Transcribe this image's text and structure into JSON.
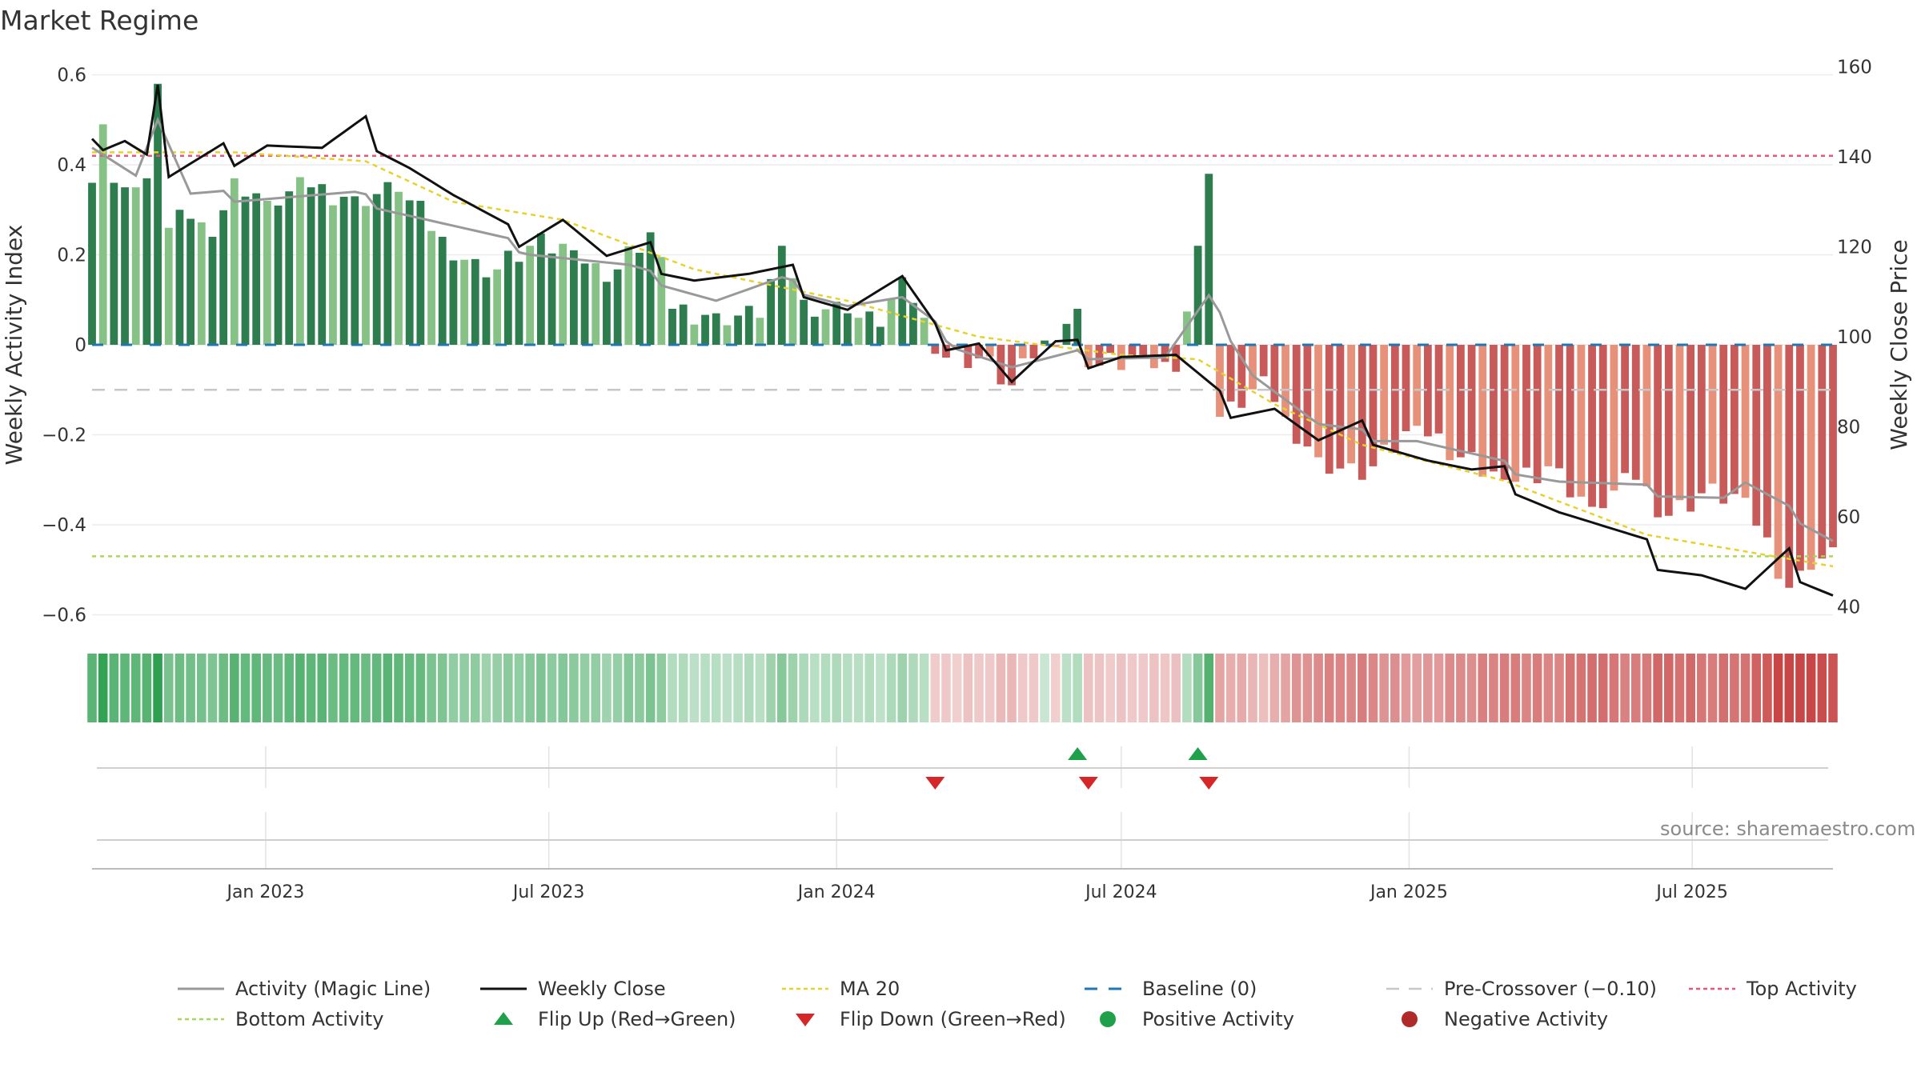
{
  "title": "Market Regime",
  "source": "source: sharemaestro.com",
  "colors": {
    "green_strong": "#2e7d4f",
    "green_light": "#86c286",
    "red_strong": "#c95a5a",
    "red_light": "#e8917a",
    "magic_line": "#999999",
    "close": "#111111",
    "ma20": "#e6d22a",
    "baseline": "#1f77b4",
    "pre_crossover": "#c7c7c7",
    "top_activity": "#e8557a",
    "bottom_activity": "#a9d65a",
    "flip_up": "#1fa04a",
    "flip_down": "#d62728"
  },
  "chart_data": {
    "type": "bar",
    "title": "Market Regime",
    "ylabel_left": "Weekly Activity Index",
    "ylabel_right": "Weekly Close Price",
    "ylim_left": [
      -0.6,
      0.6
    ],
    "ylim_right": [
      40,
      160
    ],
    "yticks_left": [
      "0.6",
      "0.4",
      "0.2",
      "0",
      "−0.2",
      "−0.4",
      "−0.6"
    ],
    "yticks_left_values": [
      0.6,
      0.4,
      0.2,
      0,
      -0.2,
      -0.4,
      -0.6
    ],
    "yticks_right": [
      "160",
      "140",
      "120",
      "100",
      "80",
      "60",
      "40"
    ],
    "yticks_right_values": [
      160,
      140,
      120,
      100,
      80,
      60,
      40
    ],
    "x_start": "2022-09-12",
    "x_end": "2025-09-29",
    "xtick_labels": [
      "Jan 2023",
      "Jul 2023",
      "Jan 2024",
      "Jul 2024",
      "Jan 2025",
      "Jul 2025"
    ],
    "xtick_dates": [
      "2023-01-01",
      "2023-07-01",
      "2024-01-01",
      "2024-07-01",
      "2025-01-01",
      "2025-07-01"
    ],
    "reference_lines": {
      "baseline": 0,
      "pre_crossover": -0.1,
      "top_activity": 0.42,
      "bottom_activity": -0.47
    },
    "flip_up_dates": [
      "2024-06-03",
      "2024-08-19"
    ],
    "flip_down_dates": [
      "2024-03-04",
      "2024-06-10",
      "2024-08-26"
    ],
    "legend": [
      {
        "key": "magic",
        "label": "Activity (Magic Line)"
      },
      {
        "key": "close",
        "label": "Weekly Close"
      },
      {
        "key": "ma20",
        "label": "MA 20"
      },
      {
        "key": "baseline",
        "label": "Baseline (0)"
      },
      {
        "key": "pre",
        "label": "Pre-Crossover (−0.10)"
      },
      {
        "key": "top",
        "label": "Top Activity"
      },
      {
        "key": "bottom",
        "label": "Bottom Activity"
      },
      {
        "key": "flipup",
        "label": "Flip Up (Red→Green)"
      },
      {
        "key": "flipdown",
        "label": "Flip Down (Green→Red)"
      },
      {
        "key": "pos",
        "label": "Positive Activity"
      },
      {
        "key": "neg",
        "label": "Negative Activity"
      }
    ],
    "legend_position": "bottom",
    "activity_keyframes": [
      {
        "d": "2022-09-12",
        "v": 0.36
      },
      {
        "d": "2022-09-19",
        "v": 0.49
      },
      {
        "d": "2022-09-26",
        "v": 0.36
      },
      {
        "d": "2022-10-03",
        "v": 0.35
      },
      {
        "d": "2022-10-10",
        "v": 0.35
      },
      {
        "d": "2022-10-17",
        "v": 0.37
      },
      {
        "d": "2022-10-24",
        "v": 0.58
      },
      {
        "d": "2022-10-31",
        "v": 0.26
      },
      {
        "d": "2022-11-14",
        "v": 0.28
      },
      {
        "d": "2022-11-28",
        "v": 0.24
      },
      {
        "d": "2022-12-12",
        "v": 0.37
      },
      {
        "d": "2023-01-02",
        "v": 0.32
      },
      {
        "d": "2023-01-30",
        "v": 0.35
      },
      {
        "d": "2023-02-27",
        "v": 0.33
      },
      {
        "d": "2023-03-27",
        "v": 0.34
      },
      {
        "d": "2023-04-24",
        "v": 0.24
      },
      {
        "d": "2023-05-22",
        "v": 0.15
      },
      {
        "d": "2023-06-19",
        "v": 0.22
      },
      {
        "d": "2023-07-17",
        "v": 0.21
      },
      {
        "d": "2023-08-07",
        "v": 0.14
      },
      {
        "d": "2023-09-04",
        "v": 0.25
      },
      {
        "d": "2023-09-18",
        "v": 0.08
      },
      {
        "d": "2023-10-16",
        "v": 0.07
      },
      {
        "d": "2023-11-13",
        "v": 0.06
      },
      {
        "d": "2023-11-27",
        "v": 0.22
      },
      {
        "d": "2023-12-11",
        "v": 0.1
      },
      {
        "d": "2024-01-08",
        "v": 0.07
      },
      {
        "d": "2024-01-29",
        "v": 0.04
      },
      {
        "d": "2024-02-12",
        "v": 0.15
      },
      {
        "d": "2024-02-26",
        "v": 0.06
      },
      {
        "d": "2024-03-04",
        "v": -0.02
      },
      {
        "d": "2024-04-01",
        "v": -0.03
      },
      {
        "d": "2024-04-22",
        "v": -0.09
      },
      {
        "d": "2024-05-06",
        "v": -0.03
      },
      {
        "d": "2024-06-03",
        "v": 0.08
      },
      {
        "d": "2024-06-10",
        "v": -0.05
      },
      {
        "d": "2024-07-15",
        "v": -0.03
      },
      {
        "d": "2024-08-05",
        "v": -0.06
      },
      {
        "d": "2024-08-19",
        "v": 0.22
      },
      {
        "d": "2024-08-26",
        "v": 0.38
      },
      {
        "d": "2024-09-02",
        "v": -0.16
      },
      {
        "d": "2024-09-16",
        "v": -0.14
      },
      {
        "d": "2024-09-30",
        "v": -0.07
      },
      {
        "d": "2024-10-14",
        "v": -0.16
      },
      {
        "d": "2024-11-04",
        "v": -0.25
      },
      {
        "d": "2024-12-02",
        "v": -0.3
      },
      {
        "d": "2025-01-06",
        "v": -0.18
      },
      {
        "d": "2025-02-03",
        "v": -0.25
      },
      {
        "d": "2025-03-03",
        "v": -0.3
      },
      {
        "d": "2025-03-31",
        "v": -0.27
      },
      {
        "d": "2025-04-28",
        "v": -0.36
      },
      {
        "d": "2025-05-26",
        "v": -0.3
      },
      {
        "d": "2025-06-16",
        "v": -0.38
      },
      {
        "d": "2025-07-07",
        "v": -0.33
      },
      {
        "d": "2025-08-04",
        "v": -0.34
      },
      {
        "d": "2025-09-01",
        "v": -0.54
      },
      {
        "d": "2025-09-15",
        "v": -0.5
      },
      {
        "d": "2025-09-29",
        "v": -0.45
      }
    ],
    "close_keyframes": [
      {
        "d": "2022-09-12",
        "p": 147
      },
      {
        "d": "2022-09-19",
        "p": 144
      },
      {
        "d": "2022-10-03",
        "p": 145
      },
      {
        "d": "2022-10-17",
        "p": 141
      },
      {
        "d": "2022-10-24",
        "p": 156
      },
      {
        "d": "2022-10-31",
        "p": 135
      },
      {
        "d": "2022-11-14",
        "p": 137
      },
      {
        "d": "2022-12-12",
        "p": 141
      },
      {
        "d": "2023-01-02",
        "p": 144
      },
      {
        "d": "2023-02-06",
        "p": 141
      },
      {
        "d": "2023-03-06",
        "p": 146
      },
      {
        "d": "2023-04-03",
        "p": 139
      },
      {
        "d": "2023-05-01",
        "p": 131
      },
      {
        "d": "2023-06-05",
        "p": 122
      },
      {
        "d": "2023-07-10",
        "p": 127
      },
      {
        "d": "2023-08-07",
        "p": 117
      },
      {
        "d": "2023-09-04",
        "p": 118
      },
      {
        "d": "2023-10-02",
        "p": 114
      },
      {
        "d": "2023-11-06",
        "p": 113
      },
      {
        "d": "2023-12-04",
        "p": 113
      },
      {
        "d": "2024-01-08",
        "p": 107
      },
      {
        "d": "2024-02-12",
        "p": 112
      },
      {
        "d": "2024-03-04",
        "p": 100
      },
      {
        "d": "2024-04-01",
        "p": 100
      },
      {
        "d": "2024-04-22",
        "p": 90
      },
      {
        "d": "2024-05-20",
        "p": 97
      },
      {
        "d": "2024-06-10",
        "p": 96
      },
      {
        "d": "2024-07-01",
        "p": 97
      },
      {
        "d": "2024-08-05",
        "p": 95
      },
      {
        "d": "2024-09-02",
        "p": 85
      },
      {
        "d": "2024-10-07",
        "p": 85
      },
      {
        "d": "2024-11-04",
        "p": 76
      },
      {
        "d": "2024-12-09",
        "p": 79
      },
      {
        "d": "2025-01-13",
        "p": 73
      },
      {
        "d": "2025-02-10",
        "p": 69
      },
      {
        "d": "2025-03-10",
        "p": 68
      },
      {
        "d": "2025-04-07",
        "p": 62
      },
      {
        "d": "2025-05-05",
        "p": 57
      },
      {
        "d": "2025-06-02",
        "p": 52
      },
      {
        "d": "2025-07-07",
        "p": 48
      },
      {
        "d": "2025-08-04",
        "p": 43
      },
      {
        "d": "2025-09-01",
        "p": 50
      },
      {
        "d": "2025-09-29",
        "p": 44
      }
    ],
    "magic_keyframes": [
      {
        "d": "2022-09-12",
        "v": 0.45
      },
      {
        "d": "2022-10-10",
        "v": 0.38
      },
      {
        "d": "2022-10-24",
        "v": 0.5
      },
      {
        "d": "2022-11-14",
        "v": 0.33
      },
      {
        "d": "2022-12-12",
        "v": 0.33
      },
      {
        "d": "2023-02-27",
        "v": 0.33
      },
      {
        "d": "2023-04-24",
        "v": 0.27
      },
      {
        "d": "2023-06-19",
        "v": 0.21
      },
      {
        "d": "2023-08-21",
        "v": 0.17
      },
      {
        "d": "2023-10-16",
        "v": 0.1
      },
      {
        "d": "2023-11-27",
        "v": 0.14
      },
      {
        "d": "2024-01-08",
        "v": 0.09
      },
      {
        "d": "2024-02-12",
        "v": 0.1
      },
      {
        "d": "2024-03-18",
        "v": 0.0
      },
      {
        "d": "2024-04-22",
        "v": -0.05
      },
      {
        "d": "2024-06-10",
        "v": -0.02
      },
      {
        "d": "2024-07-29",
        "v": -0.03
      },
      {
        "d": "2024-08-26",
        "v": 0.1
      },
      {
        "d": "2024-09-23",
        "v": -0.06
      },
      {
        "d": "2024-11-04",
        "v": -0.18
      },
      {
        "d": "2024-12-02",
        "v": -0.2
      },
      {
        "d": "2025-01-06",
        "v": -0.21
      },
      {
        "d": "2025-03-03",
        "v": -0.27
      },
      {
        "d": "2025-04-07",
        "v": -0.3
      },
      {
        "d": "2025-05-26",
        "v": -0.32
      },
      {
        "d": "2025-07-21",
        "v": -0.34
      },
      {
        "d": "2025-08-04",
        "v": -0.31
      },
      {
        "d": "2025-09-29",
        "v": -0.43
      }
    ],
    "ma20_keyframes": [
      {
        "d": "2022-09-12",
        "p": 141
      },
      {
        "d": "2022-12-12",
        "p": 141
      },
      {
        "d": "2023-03-06",
        "p": 139
      },
      {
        "d": "2023-05-01",
        "p": 130
      },
      {
        "d": "2023-07-10",
        "p": 126
      },
      {
        "d": "2023-10-02",
        "p": 115
      },
      {
        "d": "2024-01-08",
        "p": 108
      },
      {
        "d": "2024-04-01",
        "p": 100
      },
      {
        "d": "2024-07-01",
        "p": 96
      },
      {
        "d": "2024-08-19",
        "p": 95
      },
      {
        "d": "2024-10-07",
        "p": 85
      },
      {
        "d": "2024-12-02",
        "p": 76
      },
      {
        "d": "2025-03-03",
        "p": 68
      },
      {
        "d": "2025-06-02",
        "p": 56
      },
      {
        "d": "2025-09-29",
        "p": 49
      }
    ]
  }
}
